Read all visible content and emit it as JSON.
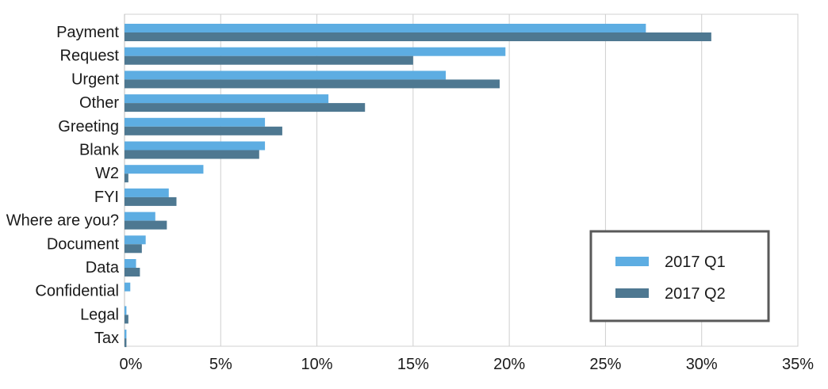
{
  "chart_data": {
    "type": "bar",
    "orientation": "horizontal",
    "categories": [
      "Payment",
      "Request",
      "Urgent",
      "Other",
      "Greeting",
      "Blank",
      "W2",
      "FYI",
      "Where are you?",
      "Document",
      "Data",
      "Confidential",
      "Legal",
      "Tax"
    ],
    "series": [
      {
        "name": "2017 Q1",
        "color": "#5dade2",
        "values": [
          27.1,
          19.8,
          16.7,
          10.6,
          7.3,
          7.3,
          4.1,
          2.3,
          1.6,
          1.1,
          0.6,
          0.3,
          0.1,
          0.1
        ]
      },
      {
        "name": "2017 Q2",
        "color": "#4e7891",
        "values": [
          30.5,
          15.0,
          19.5,
          12.5,
          8.2,
          7.0,
          0.2,
          2.7,
          2.2,
          0.9,
          0.8,
          0.0,
          0.2,
          0.1
        ]
      }
    ],
    "xlim": [
      0,
      35
    ],
    "xticks": [
      "0%",
      "5%",
      "10%",
      "15%",
      "20%",
      "25%",
      "30%",
      "35%"
    ],
    "xtick_values": [
      0,
      5,
      10,
      15,
      20,
      25,
      30,
      35
    ],
    "grid": "vertical",
    "legend_position": "bottom-right",
    "title": "",
    "xlabel": "",
    "ylabel": ""
  }
}
